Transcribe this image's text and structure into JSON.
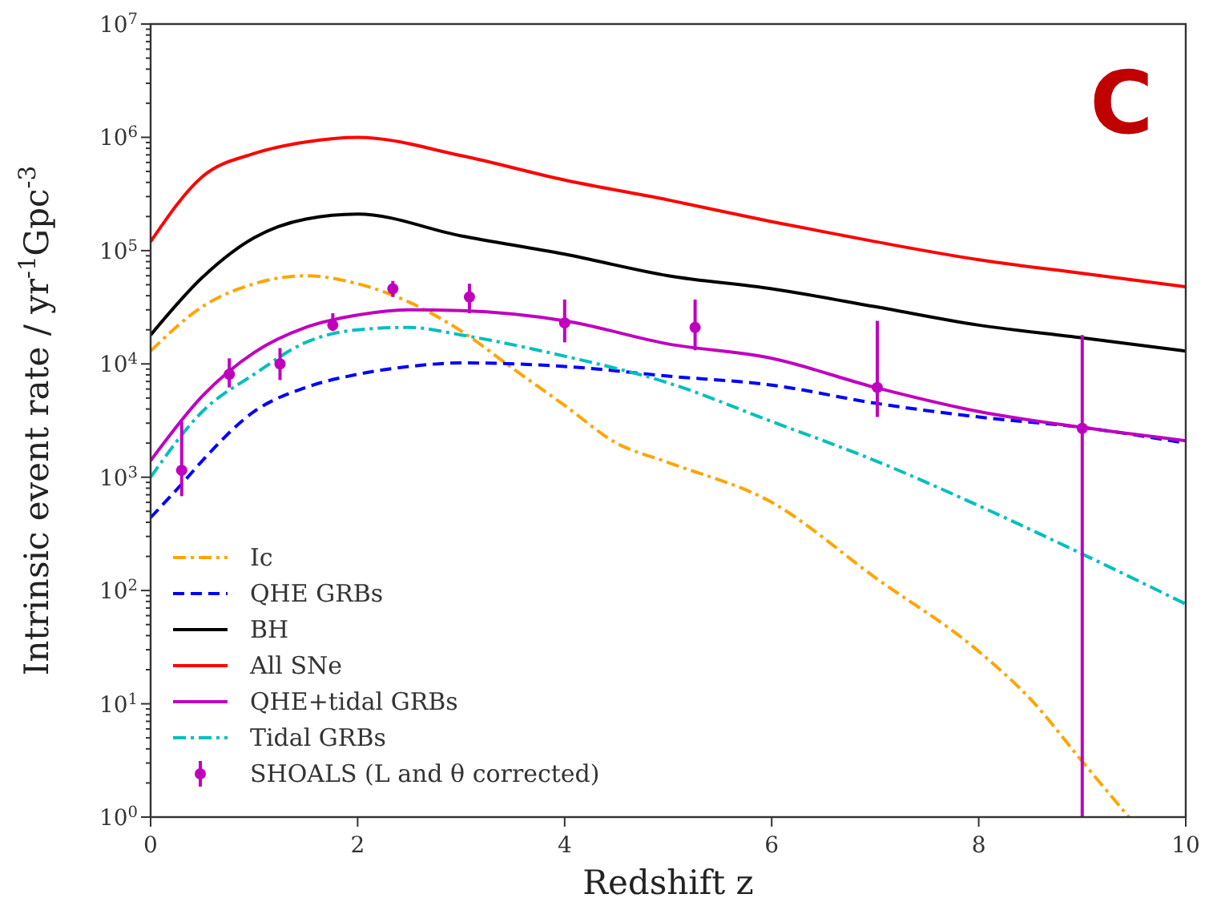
{
  "chart_data": {
    "type": "line",
    "xlabel": "Redshift z",
    "ylabel": "Intrinsic event rate / yr$^{-1}$Gpc$^{-3}$",
    "xlim": [
      0,
      10
    ],
    "xticks": [
      0,
      2,
      4,
      6,
      8,
      10
    ],
    "ylim": [
      1,
      10000000
    ],
    "yticks": [
      {
        "value": 1,
        "label": "10$^{0}$"
      },
      {
        "value": 10,
        "label": "10$^{1}$"
      },
      {
        "value": 100,
        "label": "10$^{2}$"
      },
      {
        "value": 1000,
        "label": "10$^{3}$"
      },
      {
        "value": 10000,
        "label": "10$^{4}$"
      },
      {
        "value": 100000,
        "label": "10$^{5}$"
      },
      {
        "value": 1000000,
        "label": "10$^{6}$"
      },
      {
        "value": 10000000,
        "label": "10$^{7}$"
      }
    ],
    "log": "y",
    "grid": false,
    "legend": "bottom left",
    "annotations": [
      "C"
    ],
    "series": [
      {
        "name": "Ic",
        "color": "#ffa500",
        "line_style": "dashdot",
        "x": [
          0,
          0.5,
          1,
          1.5,
          2,
          2.5,
          3,
          3.5,
          4,
          4.5,
          5,
          6,
          7,
          8,
          8.5,
          9,
          9.45
        ],
        "values": [
          13000,
          32000,
          51000,
          60000,
          51000,
          35000,
          19500,
          9100,
          4300,
          2000,
          1350,
          600,
          130,
          29,
          11,
          3.1,
          1
        ]
      },
      {
        "name": "QHE GRBs",
        "color": "#0000ff",
        "line_style": "dashed",
        "x": [
          0,
          0.3,
          0.5,
          1,
          1.5,
          2,
          2.5,
          3,
          4,
          5,
          6,
          7,
          8,
          9,
          10
        ],
        "values": [
          440,
          870,
          1400,
          3800,
          6200,
          8100,
          9500,
          10200,
          9500,
          7800,
          6500,
          4500,
          3400,
          2750,
          2000
        ]
      },
      {
        "name": "BH",
        "color": "#000000",
        "line_style": "solid",
        "x": [
          0,
          0.5,
          1,
          1.5,
          2,
          3,
          4,
          5,
          6,
          7,
          8,
          9,
          10
        ],
        "values": [
          18000,
          58000,
          130000,
          190000,
          210000,
          135000,
          93000,
          60000,
          46000,
          32000,
          22000,
          17000,
          13000
        ]
      },
      {
        "name": "All SNe",
        "color": "#ff0000",
        "line_style": "solid",
        "x": [
          0,
          0.5,
          1,
          1.5,
          2,
          3,
          4,
          5,
          6,
          7,
          8,
          9,
          10
        ],
        "values": [
          120000,
          450000,
          720000,
          910000,
          1000000,
          690000,
          420000,
          280000,
          180000,
          120000,
          83000,
          63000,
          48000
        ]
      },
      {
        "name": "QHE+tidal GRBs",
        "color": "#bf00bf",
        "line_style": "solid",
        "x": [
          0,
          0.5,
          1,
          1.5,
          2,
          2.5,
          3,
          4,
          5,
          6,
          7,
          8,
          9,
          10
        ],
        "values": [
          1400,
          5200,
          12600,
          21000,
          27000,
          30000,
          29500,
          24000,
          15000,
          11200,
          6200,
          3800,
          2750,
          2100
        ]
      },
      {
        "name": "Tidal GRBs",
        "color": "#00bfbf",
        "line_style": "dashdot",
        "x": [
          0,
          0.5,
          1,
          1.5,
          2,
          2.5,
          3,
          4,
          5,
          6,
          7,
          8,
          9,
          10
        ],
        "values": [
          1000,
          3800,
          8100,
          15500,
          20000,
          21000,
          18000,
          11700,
          6800,
          3100,
          1400,
          560,
          210,
          76
        ]
      },
      {
        "name": "SHOALS (L and θ corrected)",
        "type": "scatter",
        "marker": "circle",
        "color": "#bf00bf",
        "x": [
          0.3,
          0.76,
          1.25,
          1.76,
          2.34,
          3.08,
          4.0,
          5.26,
          7.02,
          9.0
        ],
        "values": [
          1150,
          8100,
          10000,
          22000,
          46000,
          39000,
          23000,
          21000,
          6200,
          2700
        ],
        "errors": [
          [
            680,
            3100
          ],
          [
            6200,
            11200
          ],
          [
            7200,
            13800
          ],
          [
            19500,
            28000
          ],
          [
            39000,
            54000
          ],
          [
            28000,
            51000
          ],
          [
            15500,
            37000
          ],
          [
            13200,
            37000
          ],
          [
            3400,
            24000
          ],
          [
            1,
            18000
          ]
        ]
      }
    ]
  }
}
